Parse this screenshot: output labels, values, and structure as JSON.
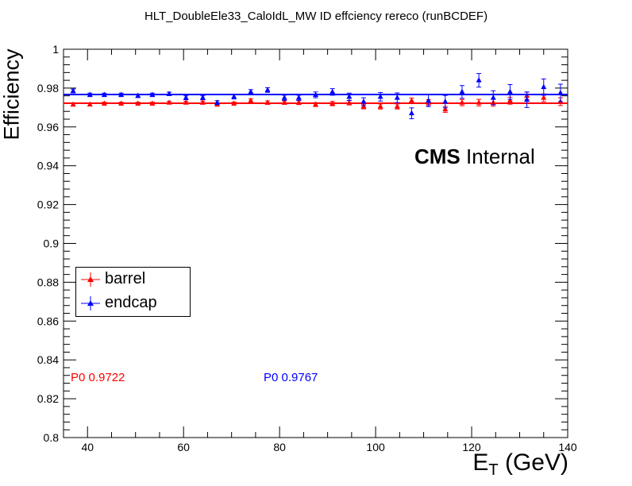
{
  "title": "HLT_DoubleEle33_CaloIdL_MW ID effciency  rereco (runBCDEF)",
  "annotation": {
    "cms": "CMS",
    "internal": "Internal"
  },
  "legend": [
    {
      "label": "barrel",
      "color": "#ff0000",
      "marker": "triangle-up"
    },
    {
      "label": "endcap",
      "color": "#0000ff",
      "marker": "triangle-up"
    }
  ],
  "fit_labels": [
    {
      "text": "P0  0.9722",
      "color": "#ff0000"
    },
    {
      "text": "P0  0.9767",
      "color": "#0000ff"
    }
  ],
  "chart_data": {
    "type": "scatter",
    "title": "HLT_DoubleEle33_CaloIdL_MW ID effciency  rereco (runBCDEF)",
    "xlabel": "E_T (GeV)",
    "ylabel": "Efficiency",
    "xlim": [
      35,
      140
    ],
    "ylim": [
      0.8,
      1.0
    ],
    "x_ticks": [
      40,
      60,
      80,
      100,
      120,
      140
    ],
    "y_ticks": [
      0.8,
      0.82,
      0.84,
      0.86,
      0.88,
      0.9,
      0.92,
      0.94,
      0.96,
      0.98,
      1
    ],
    "x_tick_labels": [
      "40",
      "60",
      "80",
      "100",
      "120",
      "140"
    ],
    "y_tick_labels": [
      "0.8",
      "0.82",
      "0.84",
      "0.86",
      "0.88",
      "0.9",
      "0.92",
      "0.94",
      "0.96",
      "0.98",
      "1"
    ],
    "grid": false,
    "legend_position": "left",
    "series": [
      {
        "name": "barrel",
        "color": "#ff0000",
        "fit": 0.9722,
        "x": [
          37,
          40.5,
          43.5,
          47,
          50.5,
          53.5,
          57,
          60.5,
          64,
          67,
          70.5,
          74,
          77.5,
          81,
          84,
          87.5,
          91,
          94.5,
          97.5,
          101,
          104.5,
          107.5,
          111,
          114.5,
          118,
          121.5,
          124.5,
          128,
          131.5,
          135,
          138.5
        ],
        "y": [
          0.9715,
          0.9715,
          0.972,
          0.972,
          0.972,
          0.972,
          0.9725,
          0.9725,
          0.9725,
          0.9715,
          0.972,
          0.9735,
          0.9725,
          0.9725,
          0.9725,
          0.9715,
          0.972,
          0.9725,
          0.9705,
          0.9705,
          0.9705,
          0.9735,
          0.9725,
          0.969,
          0.9725,
          0.9725,
          0.9725,
          0.9735,
          0.976,
          0.975,
          0.973
        ],
        "err": [
          0.0008,
          0.0007,
          0.0007,
          0.0007,
          0.0007,
          0.0007,
          0.0007,
          0.0007,
          0.0008,
          0.0008,
          0.0008,
          0.0009,
          0.0009,
          0.0009,
          0.001,
          0.001,
          0.0011,
          0.0012,
          0.0012,
          0.0013,
          0.0013,
          0.0014,
          0.0015,
          0.0015,
          0.0016,
          0.0017,
          0.0018,
          0.0018,
          0.0019,
          0.002,
          0.002
        ]
      },
      {
        "name": "endcap",
        "color": "#0000ff",
        "fit": 0.9767,
        "x": [
          37,
          40.5,
          43.5,
          47,
          50.5,
          53.5,
          57,
          60.5,
          64,
          67,
          70.5,
          74,
          77.5,
          81,
          84,
          87.5,
          91,
          94.5,
          97.5,
          101,
          104.5,
          107.5,
          111,
          114.5,
          118,
          121.5,
          124.5,
          128,
          131.5,
          135,
          138.5
        ],
        "y": [
          0.9785,
          0.9765,
          0.9765,
          0.9765,
          0.976,
          0.9765,
          0.977,
          0.975,
          0.975,
          0.9725,
          0.9755,
          0.978,
          0.979,
          0.975,
          0.975,
          0.9765,
          0.978,
          0.9755,
          0.973,
          0.9755,
          0.975,
          0.967,
          0.9735,
          0.973,
          0.978,
          0.984,
          0.975,
          0.978,
          0.974,
          0.9805,
          0.9775
        ],
        "err": [
          0.001,
          0.0009,
          0.0009,
          0.0009,
          0.0009,
          0.0009,
          0.0009,
          0.001,
          0.001,
          0.001,
          0.0011,
          0.0012,
          0.0012,
          0.0013,
          0.0013,
          0.0015,
          0.0017,
          0.0019,
          0.002,
          0.0022,
          0.0025,
          0.0028,
          0.003,
          0.0032,
          0.0033,
          0.0035,
          0.0036,
          0.0038,
          0.004,
          0.0042,
          0.0045
        ]
      }
    ]
  }
}
